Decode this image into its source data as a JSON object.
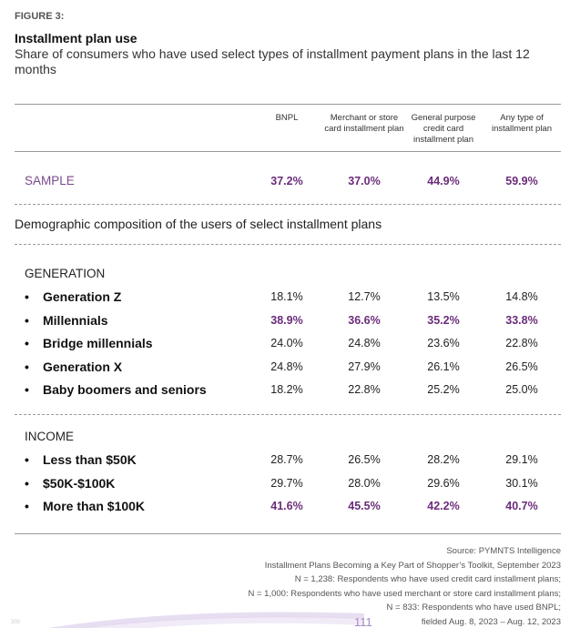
{
  "figure_label": "FIGURE 3:",
  "title": "Installment plan use",
  "subtitle": "Share of consumers who have used select types of installment payment plans in the last 12 months",
  "columns": [
    "BNPL",
    "Merchant or store card installment plan",
    "General purpose credit card installment plan",
    "Any type of installment plan"
  ],
  "sample": {
    "label": "SAMPLE",
    "values": [
      "37.2%",
      "37.0%",
      "44.9%",
      "59.9%"
    ]
  },
  "demographic_heading": "Demographic composition of the users of select installment plans",
  "bullet": "•",
  "sections": [
    {
      "label": "GENERATION",
      "rows": [
        {
          "label": "Generation Z",
          "values": [
            "18.1%",
            "12.7%",
            "13.5%",
            "14.8%"
          ],
          "highlight": false
        },
        {
          "label": "Millennials",
          "values": [
            "38.9%",
            "36.6%",
            "35.2%",
            "33.8%"
          ],
          "highlight": true
        },
        {
          "label": "Bridge millennials",
          "values": [
            "24.0%",
            "24.8%",
            "23.6%",
            "22.8%"
          ],
          "highlight": false
        },
        {
          "label": "Generation X",
          "values": [
            "24.8%",
            "27.9%",
            "26.1%",
            "26.5%"
          ],
          "highlight": false
        },
        {
          "label": "Baby boomers and seniors",
          "values": [
            "18.2%",
            "22.8%",
            "25.2%",
            "25.0%"
          ],
          "highlight": false
        }
      ]
    },
    {
      "label": "INCOME",
      "rows": [
        {
          "label": "Less than $50K",
          "values": [
            "28.7%",
            "26.5%",
            "28.2%",
            "29.1%"
          ],
          "highlight": false
        },
        {
          "label": "$50K-$100K",
          "values": [
            "29.7%",
            "28.0%",
            "29.6%",
            "30.1%"
          ],
          "highlight": false
        },
        {
          "label": "More than $100K",
          "values": [
            "41.6%",
            "45.5%",
            "42.2%",
            "40.7%"
          ],
          "highlight": true
        }
      ]
    }
  ],
  "notes": [
    "Source: PYMNTS Intelligence",
    "Installment Plans Becoming a Key Part of Shopper’s Toolkit, September 2023",
    "N = 1,238: Respondents who have used credit card installment plans;",
    "N = 1,000: Respondents who have used merchant or store card installment plans;",
    "N = 833: Respondents who have used BNPL;",
    "fielded Aug. 8, 2023 – Aug. 12, 2023"
  ],
  "page_number": "111",
  "corner_number": "300",
  "colors": {
    "highlight": "#6b2c7a",
    "sample_label": "#7a4a8a"
  }
}
